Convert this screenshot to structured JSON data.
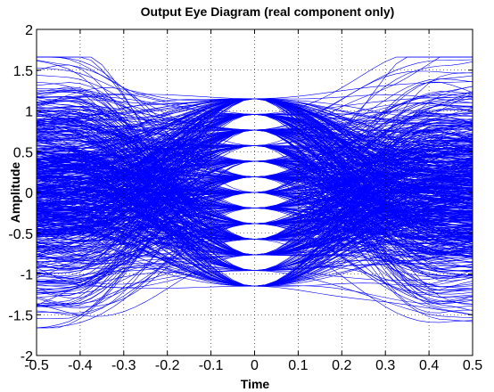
{
  "chart_data": {
    "type": "line",
    "title": "Output Eye Diagram (real component only)",
    "xlabel": "Time",
    "ylabel": "Amplitude",
    "xlim": [
      -0.5,
      0.5
    ],
    "ylim": [
      -2,
      2
    ],
    "x_ticks": [
      -0.5,
      -0.4,
      -0.3,
      -0.2,
      -0.1,
      0,
      0.1,
      0.2,
      0.3,
      0.4,
      0.5
    ],
    "x_tick_labels": [
      "-0.5",
      "-0.4",
      "-0.3",
      "-0.2",
      "-0.1",
      "0",
      "0.1",
      "0.2",
      "0.3",
      "0.4",
      "0.5"
    ],
    "y_ticks": [
      2,
      1.5,
      1,
      0.5,
      0,
      -0.5,
      -1,
      -1.5,
      -2
    ],
    "y_tick_labels": [
      "2",
      "1.5",
      "1",
      "0.5",
      "0",
      "-0.5",
      "-1",
      "-1.5",
      "-2"
    ],
    "grid": true,
    "grid_style": "dotted",
    "line_color": "#0000ff",
    "envelope": {
      "description_values": "upper/lower bound of traces in data units",
      "edge_amplitude_max": 1.66,
      "edge_amplitude_min": -1.62,
      "center_amplitude_max": 1.15,
      "center_amplitude_min": -1.18
    },
    "eye_openings_at_center": [
      -0.78,
      -0.53,
      -0.26,
      0.0,
      0.26,
      0.53,
      0.78
    ],
    "constellation_levels": [
      -1.2,
      -1.0,
      -0.8,
      -0.6,
      -0.4,
      -0.2,
      0.0,
      0.2,
      0.4,
      0.6,
      0.8,
      1.0,
      1.2
    ],
    "num_traces": 600
  }
}
